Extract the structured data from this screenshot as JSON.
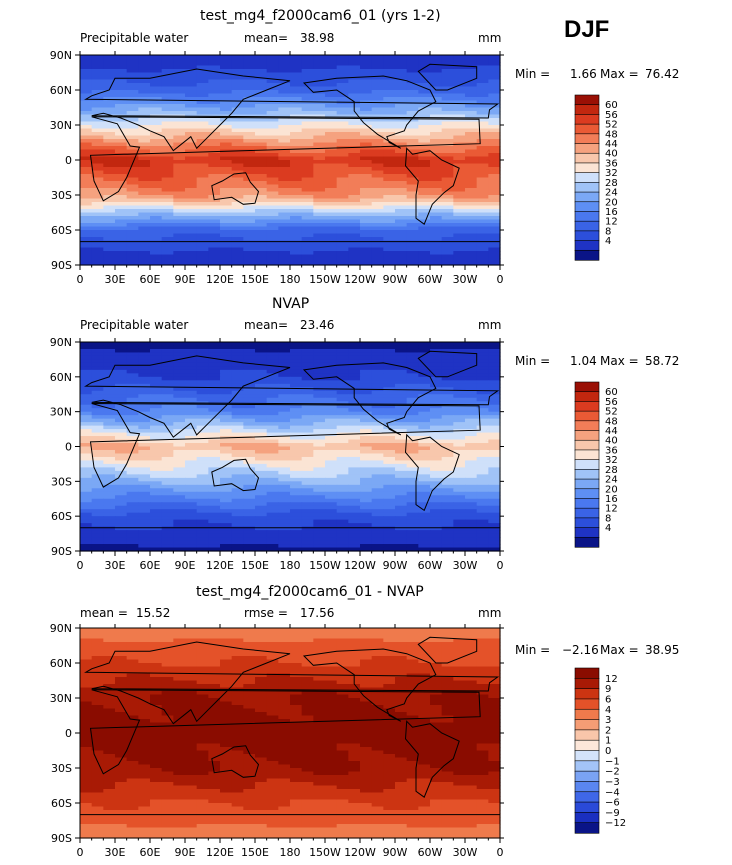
{
  "season": "DJF",
  "x_ticks": [
    "0",
    "30E",
    "60E",
    "90E",
    "120E",
    "150E",
    "180",
    "150W",
    "120W",
    "90W",
    "60W",
    "30W",
    "0"
  ],
  "y_ticks": [
    "90N",
    "60N",
    "30N",
    "0",
    "30S",
    "60S",
    "90S"
  ],
  "colors": {
    "absolute": [
      "#0a1487",
      "#1f33c4",
      "#2c4fdb",
      "#3a63e6",
      "#4a78ef",
      "#5e8ff4",
      "#7ba8f5",
      "#a0c3f7",
      "#cfe0fa",
      "#fbe4d4",
      "#f8c7ac",
      "#f5a27f",
      "#f27d58",
      "#ea5a35",
      "#db3b20",
      "#c2270f",
      "#9a1005"
    ],
    "difference": [
      "#0a1487",
      "#1a2fc0",
      "#2a4ad8",
      "#3f67e8",
      "#5a86f0",
      "#7aa3f4",
      "#a3c4f7",
      "#d3e3fa",
      "#fce7da",
      "#f9c6aa",
      "#f59d75",
      "#ef7a4c",
      "#e45229",
      "#cc3412",
      "#a81a05",
      "#8a0c00"
    ]
  },
  "chart_data": [
    {
      "type": "heatmap",
      "title": "test_mg4_f2000cam6_01 (yrs 1-2)",
      "variable": "Precipitable water",
      "mean_label": "mean=",
      "mean": "38.98",
      "units": "mm",
      "min_label": "Min =",
      "min": "1.66",
      "max_label": "Max =",
      "max": "76.42",
      "colorbar_levels": [
        "60",
        "56",
        "52",
        "48",
        "44",
        "40",
        "36",
        "32",
        "28",
        "24",
        "20",
        "16",
        "12",
        "8",
        "4"
      ],
      "x_range": [
        0,
        360
      ],
      "y_range": [
        -90,
        90
      ],
      "lat_profile_lat": [
        90,
        60,
        30,
        0,
        -30,
        -60,
        -90
      ],
      "lat_profile_value": [
        4,
        14,
        36,
        60,
        48,
        14,
        4
      ]
    },
    {
      "type": "heatmap",
      "title": "NVAP",
      "variable": "Precipitable water",
      "mean_label": "mean=",
      "mean": "23.46",
      "units": "mm",
      "min_label": "Min =",
      "min": "1.04",
      "max_label": "Max =",
      "max": "58.72",
      "colorbar_levels": [
        "60",
        "56",
        "52",
        "48",
        "44",
        "40",
        "36",
        "32",
        "28",
        "24",
        "20",
        "16",
        "12",
        "8",
        "4"
      ],
      "x_range": [
        0,
        360
      ],
      "y_range": [
        -90,
        90
      ],
      "lat_profile_lat": [
        90,
        60,
        30,
        0,
        -30,
        -60,
        -90
      ],
      "lat_profile_value": [
        3,
        8,
        20,
        44,
        28,
        10,
        3
      ]
    },
    {
      "type": "heatmap",
      "title": "test_mg4_f2000cam6_01 - NVAP",
      "variable": "",
      "mean_label": "mean =",
      "mean": "15.52",
      "rmse_label": "rmse =",
      "rmse": "17.56",
      "units": "mm",
      "min_label": "Min =",
      "min": "−2.16",
      "max_label": "Max =",
      "max": "38.95",
      "colorbar_levels": [
        "12",
        "9",
        "6",
        "4",
        "3",
        "2",
        "1",
        "0",
        "−1",
        "−2",
        "−3",
        "−4",
        "−6",
        "−9",
        "−12"
      ],
      "x_range": [
        0,
        360
      ],
      "y_range": [
        -90,
        90
      ],
      "lat_profile_lat": [
        90,
        60,
        30,
        0,
        -30,
        -60,
        -90
      ],
      "lat_profile_value": [
        3,
        6,
        12,
        14,
        12,
        6,
        3
      ]
    }
  ]
}
